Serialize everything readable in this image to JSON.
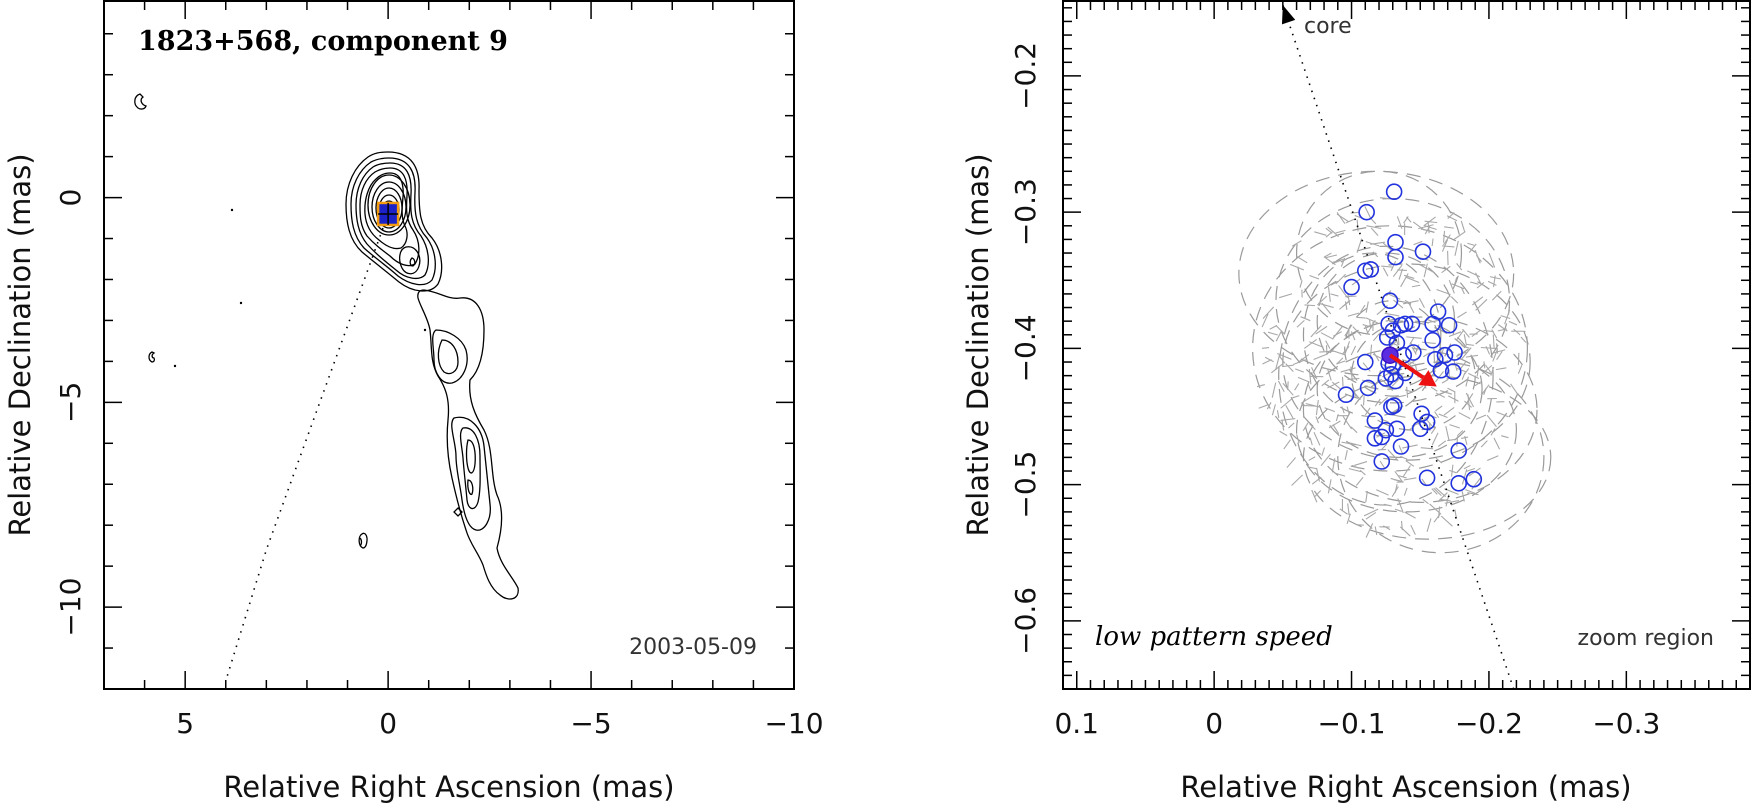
{
  "figure": {
    "left_panel": {
      "title": "1823+568, component 9",
      "date_label": "2003-05-09",
      "xlabel": "Relative Right Ascension (mas)",
      "ylabel": "Relative Declination (mas)"
    },
    "right_panel": {
      "ylabel": "Relative Declination (mas)",
      "xlabel": "Relative Right Ascension (mas)",
      "core_label": "core",
      "speed_label": "low pattern speed",
      "zoom_label": "zoom region"
    }
  },
  "chart_data": [
    {
      "type": "contour",
      "title": "1823+568, component 9",
      "annotation": "2003-05-09",
      "xlabel": "Relative Right Ascension (mas)",
      "ylabel": "Relative Declination (mas)",
      "xlim": [
        7,
        -10
      ],
      "ylim": [
        -12,
        4.8
      ],
      "xticks": [
        5,
        0,
        -5,
        -10
      ],
      "xtick_labels": [
        "5",
        "0",
        "−5",
        "−10"
      ],
      "yticks": [
        0,
        -5,
        -10
      ],
      "ytick_labels": [
        "0",
        "−5",
        "−10"
      ],
      "marker": {
        "x": 0,
        "y": -0.4,
        "label": "component 9"
      },
      "jet_path": [
        [
          0,
          -0.4
        ],
        [
          3,
          -8.6
        ],
        [
          4,
          -11.8
        ]
      ]
    },
    {
      "type": "scatter",
      "xlabel": "Relative Right Ascension (mas)",
      "ylabel": "Relative Declination (mas)",
      "xlim": [
        0.11,
        -0.39
      ],
      "ylim": [
        -0.65,
        -0.145
      ],
      "xticks": [
        0.1,
        0,
        -0.1,
        -0.2,
        -0.3
      ],
      "xtick_labels": [
        "0.1",
        "0",
        "−0.1",
        "−0.2",
        "−0.3"
      ],
      "yticks": [
        -0.2,
        -0.3,
        -0.4,
        -0.5,
        -0.6
      ],
      "ytick_labels": [
        "−0.2",
        "−0.3",
        "−0.4",
        "−0.5",
        "−0.6"
      ],
      "annotations": [
        "core",
        "low pattern speed",
        "zoom region"
      ],
      "mean_position": {
        "x": -0.128,
        "y": -0.405
      },
      "velocity_arrow": {
        "from": [
          -0.128,
          -0.405
        ],
        "to": [
          -0.162,
          -0.428
        ]
      },
      "core_direction": {
        "from": [
          -0.218,
          -0.65
        ],
        "to": [
          -0.05,
          -0.148
        ]
      },
      "points": [
        {
          "x": -0.131,
          "y": -0.285
        },
        {
          "x": -0.111,
          "y": -0.3
        },
        {
          "x": -0.132,
          "y": -0.322
        },
        {
          "x": -0.132,
          "y": -0.333
        },
        {
          "x": -0.152,
          "y": -0.329
        },
        {
          "x": -0.114,
          "y": -0.342
        },
        {
          "x": -0.11,
          "y": -0.343
        },
        {
          "x": -0.1,
          "y": -0.355
        },
        {
          "x": -0.128,
          "y": -0.365
        },
        {
          "x": -0.163,
          "y": -0.373
        },
        {
          "x": -0.127,
          "y": -0.382
        },
        {
          "x": -0.136,
          "y": -0.383
        },
        {
          "x": -0.139,
          "y": -0.382
        },
        {
          "x": -0.144,
          "y": -0.382
        },
        {
          "x": -0.159,
          "y": -0.382
        },
        {
          "x": -0.171,
          "y": -0.383
        },
        {
          "x": -0.13,
          "y": -0.387
        },
        {
          "x": -0.126,
          "y": -0.392
        },
        {
          "x": -0.159,
          "y": -0.394
        },
        {
          "x": -0.133,
          "y": -0.396
        },
        {
          "x": -0.138,
          "y": -0.405
        },
        {
          "x": -0.145,
          "y": -0.403
        },
        {
          "x": -0.175,
          "y": -0.403
        },
        {
          "x": -0.168,
          "y": -0.405
        },
        {
          "x": -0.161,
          "y": -0.408
        },
        {
          "x": -0.11,
          "y": -0.41
        },
        {
          "x": -0.127,
          "y": -0.411
        },
        {
          "x": -0.13,
          "y": -0.413
        },
        {
          "x": -0.165,
          "y": -0.416
        },
        {
          "x": -0.174,
          "y": -0.417
        },
        {
          "x": -0.129,
          "y": -0.419
        },
        {
          "x": -0.139,
          "y": -0.418
        },
        {
          "x": -0.125,
          "y": -0.422
        },
        {
          "x": -0.132,
          "y": -0.424
        },
        {
          "x": -0.112,
          "y": -0.429
        },
        {
          "x": -0.096,
          "y": -0.434
        },
        {
          "x": -0.131,
          "y": -0.442
        },
        {
          "x": -0.129,
          "y": -0.443
        },
        {
          "x": -0.151,
          "y": -0.448
        },
        {
          "x": -0.117,
          "y": -0.453
        },
        {
          "x": -0.155,
          "y": -0.454
        },
        {
          "x": -0.125,
          "y": -0.46
        },
        {
          "x": -0.133,
          "y": -0.459
        },
        {
          "x": -0.15,
          "y": -0.459
        },
        {
          "x": -0.117,
          "y": -0.466
        },
        {
          "x": -0.122,
          "y": -0.465
        },
        {
          "x": -0.136,
          "y": -0.472
        },
        {
          "x": -0.178,
          "y": -0.475
        },
        {
          "x": -0.122,
          "y": -0.483
        },
        {
          "x": -0.155,
          "y": -0.495
        },
        {
          "x": -0.178,
          "y": -0.499
        },
        {
          "x": -0.189,
          "y": -0.496
        }
      ],
      "uncertainty_ellipses": [
        {
          "x": -0.12,
          "y": -0.33,
          "rx": 0.06,
          "ry": 0.06
        },
        {
          "x": -0.118,
          "y": -0.345,
          "rx": 0.1,
          "ry": 0.075
        },
        {
          "x": -0.13,
          "y": -0.365,
          "rx": 0.085,
          "ry": 0.075
        },
        {
          "x": -0.128,
          "y": -0.4,
          "rx": 0.1,
          "ry": 0.09
        },
        {
          "x": -0.14,
          "y": -0.41,
          "rx": 0.09,
          "ry": 0.072
        },
        {
          "x": -0.125,
          "y": -0.42,
          "rx": 0.078,
          "ry": 0.095
        },
        {
          "x": -0.15,
          "y": -0.445,
          "rx": 0.085,
          "ry": 0.068
        },
        {
          "x": -0.165,
          "y": -0.48,
          "rx": 0.075,
          "ry": 0.07
        },
        {
          "x": -0.14,
          "y": -0.46,
          "rx": 0.08,
          "ry": 0.06
        },
        {
          "x": -0.155,
          "y": -0.48,
          "rx": 0.09,
          "ry": 0.06
        },
        {
          "x": -0.115,
          "y": -0.39,
          "rx": 0.05,
          "ry": 0.06
        },
        {
          "x": -0.135,
          "y": -0.43,
          "rx": 0.06,
          "ry": 0.05
        },
        {
          "x": -0.125,
          "y": -0.38,
          "rx": 0.05,
          "ry": 0.05
        },
        {
          "x": -0.145,
          "y": -0.42,
          "rx": 0.045,
          "ry": 0.04
        },
        {
          "x": -0.13,
          "y": -0.4,
          "rx": 0.035,
          "ry": 0.035
        }
      ]
    }
  ]
}
